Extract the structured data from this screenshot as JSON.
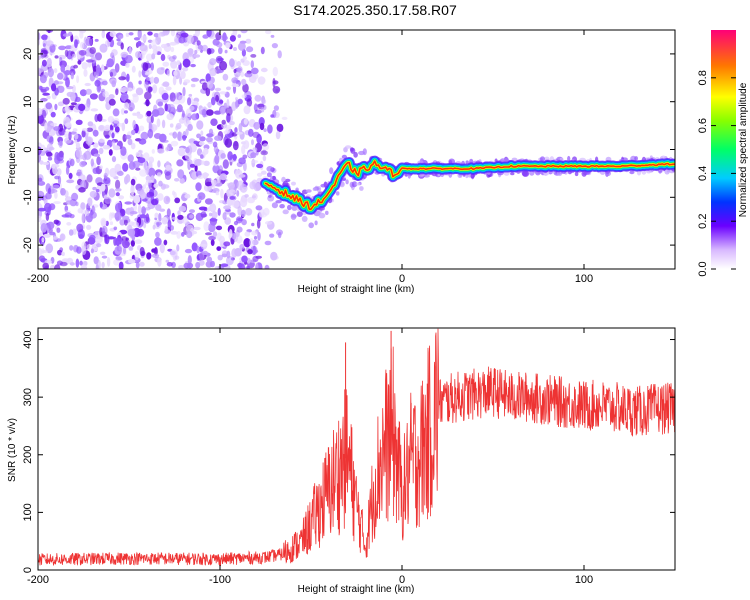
{
  "title": "S174.2025.350.17.58.R07",
  "chart_data": [
    {
      "type": "heatmap",
      "name": "spectrogram",
      "xlabel": "Height of straight line (km)",
      "ylabel": "Frequency (Hz)",
      "xlim": [
        -200,
        150
      ],
      "ylim": [
        -25,
        25
      ],
      "xticks": [
        -200,
        -100,
        0,
        100
      ],
      "yticks": [
        -20,
        -10,
        0,
        10,
        20
      ],
      "colorbar": {
        "label": "Normalized spectral amplitude",
        "range": [
          0,
          1
        ],
        "ticks": [
          "0.0",
          "0.2",
          "0.4",
          "0.6",
          "0.8"
        ],
        "tick_values": [
          0.0,
          0.2,
          0.4,
          0.6,
          0.8
        ]
      },
      "noise_region_x": [
        -200,
        -63
      ],
      "signal_ridge": {
        "x": [
          -75,
          -60,
          -50,
          -45,
          -40,
          -35,
          -30,
          -25,
          -20,
          -15,
          -10,
          -5,
          0,
          5,
          10,
          20,
          40,
          60,
          80,
          100,
          120,
          150
        ],
        "y": [
          -7,
          -10,
          -12,
          -11,
          -9,
          -6,
          -3,
          -5,
          -4,
          -3,
          -4,
          -5,
          -4,
          -4,
          -4,
          -4,
          -4,
          -3.5,
          -3.5,
          -3.5,
          -3.5,
          -3
        ]
      }
    },
    {
      "type": "line",
      "name": "snr",
      "xlabel": "Height of straight line (km)",
      "ylabel": "SNR (10 * v/v)",
      "xlim": [
        -200,
        150
      ],
      "ylim": [
        0,
        420
      ],
      "xticks": [
        -200,
        -100,
        0,
        100
      ],
      "yticks": [
        0,
        100,
        200,
        300,
        400
      ],
      "color": "#ee3333",
      "series": [
        {
          "name": "SNR",
          "x": [
            -200,
            -150,
            -100,
            -75,
            -65,
            -55,
            -50,
            -45,
            -40,
            -35,
            -30,
            -25,
            -20,
            -15,
            -10,
            -5,
            0,
            5,
            10,
            15,
            20,
            30,
            40,
            50,
            60,
            70,
            80,
            90,
            100,
            110,
            120,
            130,
            140,
            150
          ],
          "y": [
            18,
            20,
            19,
            22,
            28,
            50,
            80,
            110,
            140,
            170,
            200,
            110,
            40,
            150,
            210,
            240,
            130,
            190,
            200,
            240,
            290,
            300,
            305,
            310,
            300,
            300,
            295,
            290,
            285,
            285,
            280,
            275,
            280,
            280
          ],
          "spikes": [
            {
              "x": -31,
              "y": 395
            },
            {
              "x": -6,
              "y": 415
            },
            {
              "x": 5,
              "y": 290
            }
          ]
        }
      ]
    }
  ]
}
